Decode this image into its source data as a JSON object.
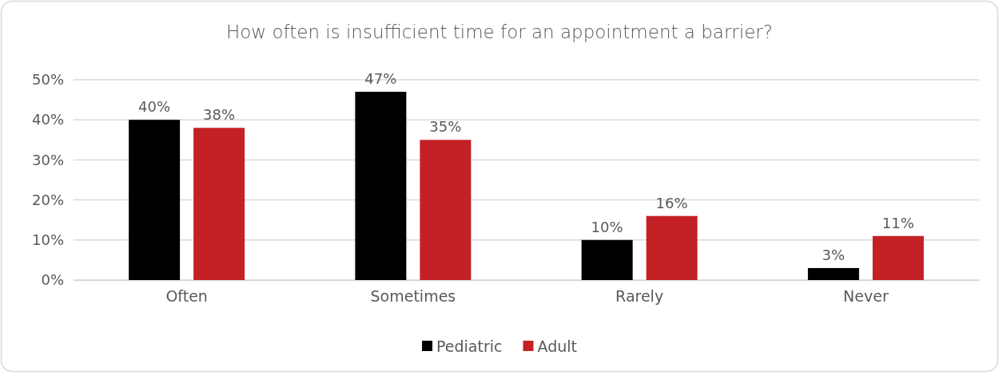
{
  "chart_data": {
    "type": "bar",
    "title": "How often is insufficient time for an appointment a barrier?",
    "categories": [
      "Often",
      "Sometimes",
      "Rarely",
      "Never"
    ],
    "series": [
      {
        "name": "Pediatric",
        "color": "#000000",
        "values": [
          40,
          47,
          10,
          3
        ],
        "value_labels": [
          "40%",
          "47%",
          "10%",
          "3%"
        ]
      },
      {
        "name": "Adult",
        "color": "#c32126",
        "values": [
          38,
          35,
          16,
          11
        ],
        "value_labels": [
          "38%",
          "35%",
          "16%",
          "11%"
        ]
      }
    ],
    "ylim": [
      0,
      50
    ],
    "yticks": [
      {
        "value": 0,
        "label": "0%"
      },
      {
        "value": 10,
        "label": "10%"
      },
      {
        "value": 20,
        "label": "20%"
      },
      {
        "value": 30,
        "label": "30%"
      },
      {
        "value": 40,
        "label": "40%"
      },
      {
        "value": 50,
        "label": "50%"
      }
    ],
    "grid": "y",
    "legend": "bottom"
  }
}
